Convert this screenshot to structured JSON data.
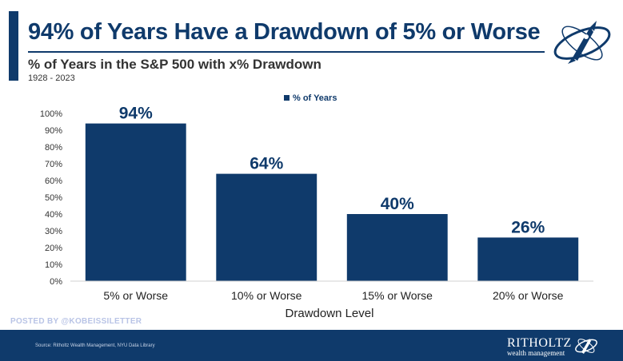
{
  "header": {
    "title": "94% of Years Have a Drawdown of 5% or Worse",
    "subtitle": "% of Years in the S&P 500 with x% Drawdown",
    "date_range": "1928 - 2023"
  },
  "chart_data": {
    "type": "bar",
    "categories": [
      "5% or Worse",
      "10% or Worse",
      "15% or Worse",
      "20% or Worse"
    ],
    "series": [
      {
        "name": "% of Years",
        "values": [
          94,
          64,
          40,
          26
        ]
      }
    ],
    "data_labels": [
      "94%",
      "64%",
      "40%",
      "26%"
    ],
    "xlabel": "Drawdown Level",
    "ylabel": "",
    "ylim": [
      0,
      100
    ],
    "yticks": [
      0,
      10,
      20,
      30,
      40,
      50,
      60,
      70,
      80,
      90,
      100
    ],
    "ytick_labels": [
      "0%",
      "10%",
      "20%",
      "30%",
      "40%",
      "50%",
      "60%",
      "70%",
      "80%",
      "90%",
      "100%"
    ],
    "legend": {
      "label": "% of Years",
      "position": "top-center"
    },
    "grid": false,
    "bar_color": "#0f3a6b"
  },
  "watermark": "POSTED BY @KOBEISSILETTER",
  "footer": {
    "source": "Source: Ritholtz Wealth Management, NYU Data Library",
    "brand_name": "RITHOLTZ",
    "brand_sub": "wealth management"
  },
  "colors": {
    "primary": "#0f3a6b",
    "footer_text": "#c7d3e6",
    "watermark": "#b9c4e6"
  },
  "icons": {
    "logo": "ritholtz-rocket-orbit-icon"
  }
}
